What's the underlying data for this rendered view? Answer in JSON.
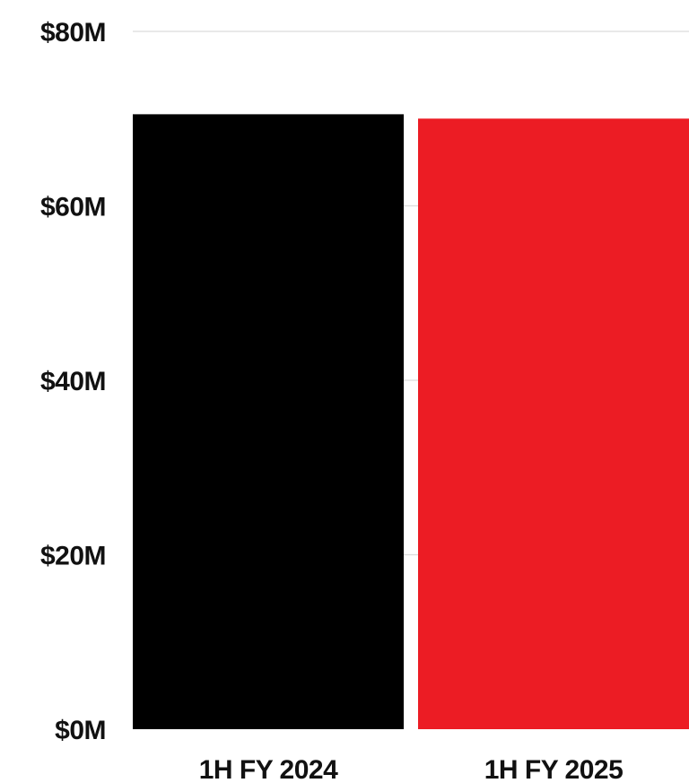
{
  "chart_data": {
    "type": "bar",
    "title": "",
    "xlabel": "",
    "ylabel": "",
    "categories": [
      "1H FY 2024",
      "1H FY 2025"
    ],
    "values": [
      70.5,
      70.0
    ],
    "bar_colors": [
      "#000000",
      "#ec1c24"
    ],
    "ylim": [
      0,
      80
    ],
    "y_ticks": [
      0,
      20,
      40,
      60,
      80
    ],
    "y_tick_labels": [
      "$0M",
      "$20M",
      "$40M",
      "$60M",
      "$80M"
    ],
    "grid": true,
    "legend": "none"
  }
}
